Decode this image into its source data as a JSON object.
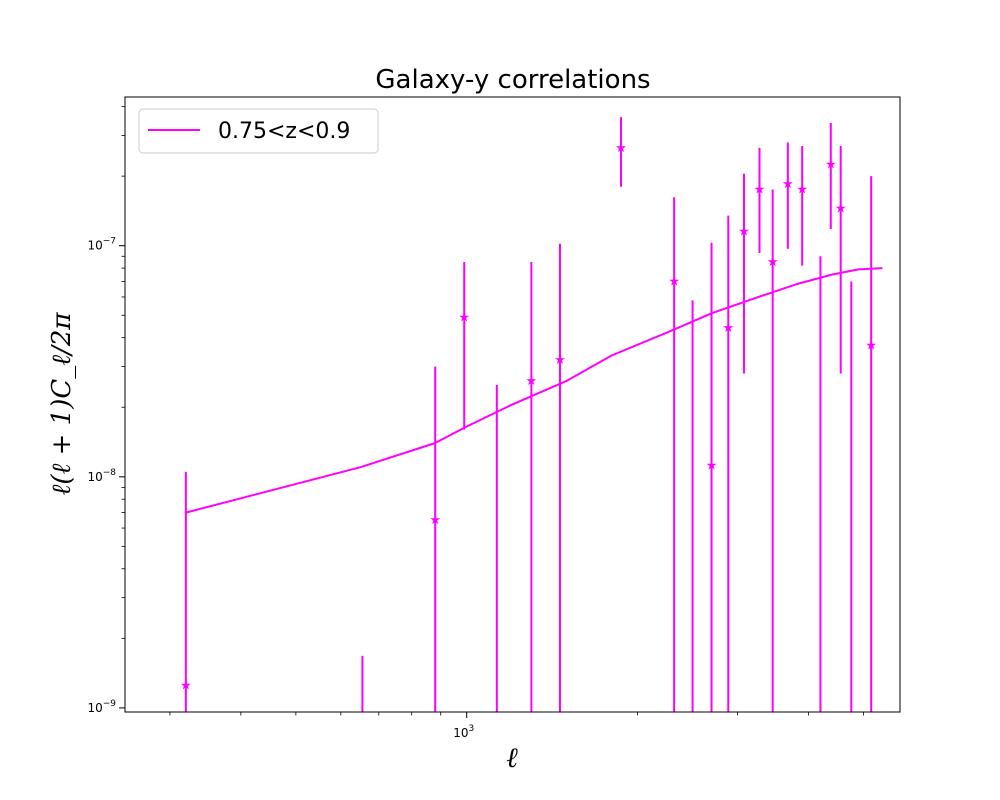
{
  "chart_data": {
    "type": "scatter",
    "title": "Galaxy-y correlations",
    "xlabel": "ℓ",
    "ylabel": "ℓ(ℓ + 1)C_ℓ/2π",
    "x_scale": "log",
    "y_scale": "log",
    "xlim": [
      250,
      5800
    ],
    "ylim": [
      9.6e-10,
      4.4e-07
    ],
    "x_ticks": [
      {
        "value": 1000,
        "mantissa": "10",
        "exp": "3"
      }
    ],
    "y_ticks": [
      {
        "value": 1e-09,
        "mantissa": "10",
        "exp": "−9"
      },
      {
        "value": 1e-08,
        "mantissa": "10",
        "exp": "−8"
      },
      {
        "value": 1e-07,
        "mantissa": "10",
        "exp": "−7"
      }
    ],
    "grid": false,
    "legend_position": "top-left",
    "color": "#ff00ff",
    "series": [
      {
        "name": "0.75<z<0.9",
        "kind": "line",
        "x": [
          320,
          650,
          880,
          1000,
          1200,
          1500,
          1800,
          2300,
          2700,
          3200,
          3800,
          4400,
          4900,
          5400
        ],
        "y": [
          7e-09,
          1.1e-08,
          1.4e-08,
          1.65e-08,
          2.05e-08,
          2.6e-08,
          3.35e-08,
          4.3e-08,
          5.1e-08,
          5.9e-08,
          6.8e-08,
          7.5e-08,
          7.9e-08,
          8e-08
        ]
      },
      {
        "name": "",
        "kind": "errorbar",
        "points": [
          {
            "x": 320,
            "y": 1.25e-09,
            "ylo": 8e-10,
            "yhi": 1.05e-08
          },
          {
            "x": 655,
            "y": null,
            "ylo": 8e-10,
            "yhi": 1.68e-09
          },
          {
            "x": 880,
            "y": 6.5e-09,
            "ylo": 8e-10,
            "yhi": 3e-08
          },
          {
            "x": 990,
            "y": 4.9e-08,
            "ylo": 1.6e-08,
            "yhi": 8.5e-08
          },
          {
            "x": 1130,
            "y": null,
            "ylo": 8e-10,
            "yhi": 2.5e-08
          },
          {
            "x": 1300,
            "y": 2.6e-08,
            "ylo": 8e-10,
            "yhi": 8.5e-08
          },
          {
            "x": 1460,
            "y": 3.2e-08,
            "ylo": 8e-10,
            "yhi": 1.02e-07
          },
          {
            "x": 1870,
            "y": 2.65e-07,
            "ylo": 1.8e-07,
            "yhi": 3.6e-07
          },
          {
            "x": 2320,
            "y": 7e-08,
            "ylo": 8e-10,
            "yhi": 1.62e-07
          },
          {
            "x": 2500,
            "y": null,
            "ylo": 8e-10,
            "yhi": 5.8e-08
          },
          {
            "x": 2700,
            "y": 1.12e-08,
            "ylo": 8e-10,
            "yhi": 1.03e-07
          },
          {
            "x": 2890,
            "y": 4.4e-08,
            "ylo": 8e-10,
            "yhi": 1.35e-07
          },
          {
            "x": 3080,
            "y": 1.15e-07,
            "ylo": 2.8e-08,
            "yhi": 2.05e-07
          },
          {
            "x": 3280,
            "y": 1.75e-07,
            "ylo": 9.3e-08,
            "yhi": 2.65e-07
          },
          {
            "x": 3460,
            "y": 8.5e-08,
            "ylo": 8e-10,
            "yhi": 1.75e-07
          },
          {
            "x": 3680,
            "y": 1.85e-07,
            "ylo": 9.7e-08,
            "yhi": 2.8e-07
          },
          {
            "x": 3900,
            "y": 1.75e-07,
            "ylo": 8.2e-08,
            "yhi": 2.7e-07
          },
          {
            "x": 4200,
            "y": null,
            "ylo": 8e-10,
            "yhi": 9e-08
          },
          {
            "x": 4380,
            "y": 2.25e-07,
            "ylo": 1.18e-07,
            "yhi": 3.4e-07
          },
          {
            "x": 4560,
            "y": 1.45e-07,
            "ylo": 2.8e-08,
            "yhi": 2.7e-07
          },
          {
            "x": 4760,
            "y": null,
            "ylo": 8e-10,
            "yhi": 7e-08
          },
          {
            "x": 5160,
            "y": 3.7e-08,
            "ylo": 8e-10,
            "yhi": 2e-07
          }
        ]
      }
    ]
  }
}
